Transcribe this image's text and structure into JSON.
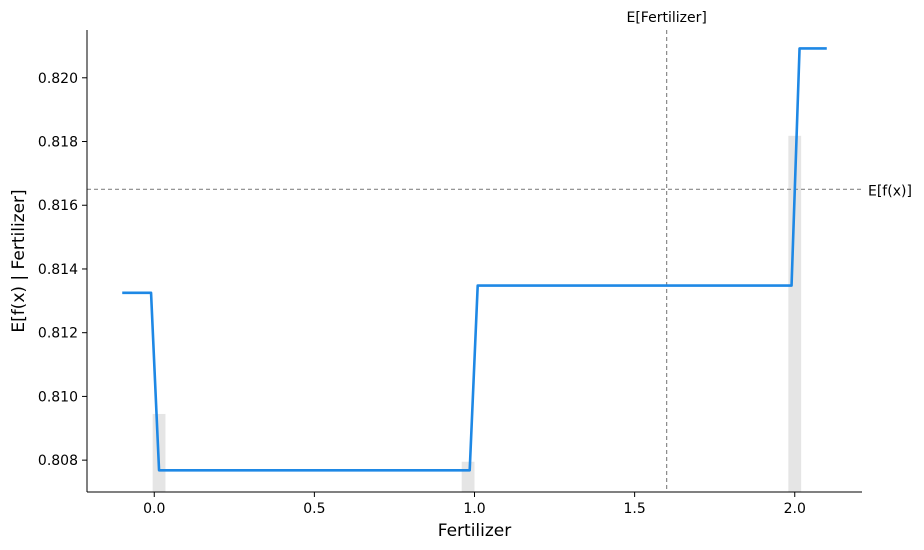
{
  "chart_data": {
    "type": "line",
    "title": "",
    "xlabel": "Fertilizer",
    "ylabel": "E[f(x) | Fertilizer]",
    "xlim": [
      -0.21,
      2.21
    ],
    "ylim": [
      0.807,
      0.8215
    ],
    "x_ticks": [
      0.0,
      0.5,
      1.0,
      1.5,
      2.0
    ],
    "x_tick_labels": [
      "0.0",
      "0.5",
      "1.0",
      "1.5",
      "2.0"
    ],
    "y_ticks": [
      0.808,
      0.81,
      0.812,
      0.814,
      0.816,
      0.818,
      0.82
    ],
    "y_tick_labels": [
      "0.808",
      "0.810",
      "0.812",
      "0.814",
      "0.816",
      "0.818",
      "0.820"
    ],
    "grid": false,
    "series": [
      {
        "color": "#1e88e5",
        "x": [
          -0.1,
          -0.01,
          0.015,
          0.985,
          1.01,
          1.99,
          2.015,
          2.1
        ],
        "y": [
          0.81325,
          0.81325,
          0.80768,
          0.80768,
          0.81348,
          0.81348,
          0.82092,
          0.82092
        ]
      }
    ],
    "histogram": {
      "color": "#e5e5e5",
      "bins": [
        {
          "x0": -0.005,
          "x1": 0.035,
          "top": 0.80945
        },
        {
          "x0": 0.96,
          "x1": 1.0,
          "top": 0.80795
        },
        {
          "x0": 1.98,
          "x1": 2.02,
          "top": 0.81818
        }
      ]
    },
    "reference_lines": {
      "expected_x": {
        "value": 1.6,
        "label": "E[Fertilizer]"
      },
      "expected_y": {
        "value": 0.8165,
        "label": "E[f(x)]"
      }
    }
  }
}
